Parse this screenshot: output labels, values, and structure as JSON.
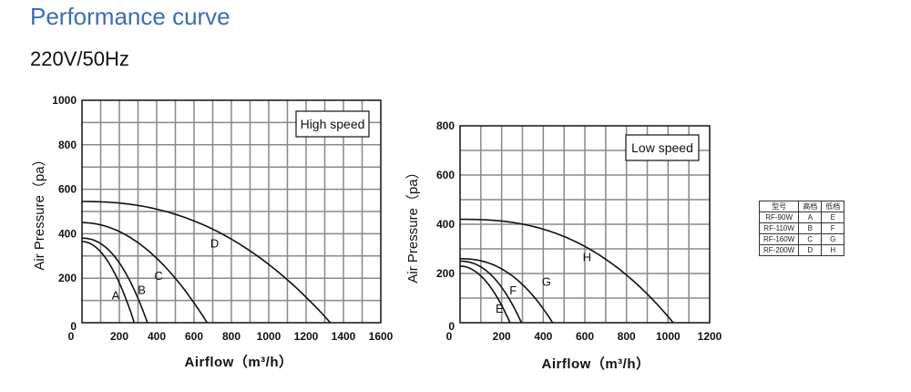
{
  "page": {
    "title": "Performance curve",
    "subtitle": "220V/50Hz"
  },
  "chart_data": [
    {
      "type": "line",
      "badge": "High speed",
      "xlabel": "Airflow（m³/h）",
      "ylabel": "Air Pressure（pa）",
      "xlim": [
        0,
        1600
      ],
      "ylim": [
        0,
        1000
      ],
      "x_ticks": [
        "0",
        "200",
        "400",
        "600",
        "800",
        "1000",
        "1200",
        "1400",
        "1600"
      ],
      "y_ticks": [
        "0",
        "200",
        "400",
        "600",
        "800",
        "1000"
      ],
      "series": [
        {
          "name": "A",
          "max_pressure": 365,
          "max_airflow": 280,
          "exponent": 2.0,
          "label_at": [
            180,
            120
          ]
        },
        {
          "name": "B",
          "max_pressure": 380,
          "max_airflow": 350,
          "exponent": 2.2,
          "label_at": [
            320,
            145
          ]
        },
        {
          "name": "C",
          "max_pressure": 450,
          "max_airflow": 670,
          "exponent": 2.0,
          "label_at": [
            410,
            210
          ]
        },
        {
          "name": "D",
          "max_pressure": 545,
          "max_airflow": 1330,
          "exponent": 2.3,
          "label_at": [
            710,
            355
          ]
        }
      ]
    },
    {
      "type": "line",
      "badge": "Low speed",
      "xlabel": "Airflow（m³/h）",
      "ylabel": "Air Pressure（pa）",
      "xlim": [
        0,
        1200
      ],
      "ylim": [
        0,
        800
      ],
      "x_ticks": [
        "0",
        "200",
        "400",
        "600",
        "800",
        "1000",
        "1200"
      ],
      "y_ticks": [
        "0",
        "200",
        "400",
        "600",
        "800"
      ],
      "series": [
        {
          "name": "E",
          "max_pressure": 230,
          "max_airflow": 240,
          "exponent": 2.0,
          "label_at": [
            190,
            55
          ]
        },
        {
          "name": "F",
          "max_pressure": 250,
          "max_airflow": 295,
          "exponent": 2.2,
          "label_at": [
            255,
            130
          ]
        },
        {
          "name": "G",
          "max_pressure": 260,
          "max_airflow": 445,
          "exponent": 2.3,
          "label_at": [
            415,
            165
          ]
        },
        {
          "name": "H",
          "max_pressure": 420,
          "max_airflow": 1025,
          "exponent": 2.5,
          "label_at": [
            610,
            265
          ]
        }
      ]
    }
  ],
  "spec_table": {
    "headers": [
      "型号",
      "高档",
      "低档"
    ],
    "rows": [
      [
        "RF-90W",
        "A",
        "E"
      ],
      [
        "RF-110W",
        "B",
        "F"
      ],
      [
        "RF-160W",
        "C",
        "G"
      ],
      [
        "RF-200W",
        "D",
        "H"
      ]
    ]
  }
}
